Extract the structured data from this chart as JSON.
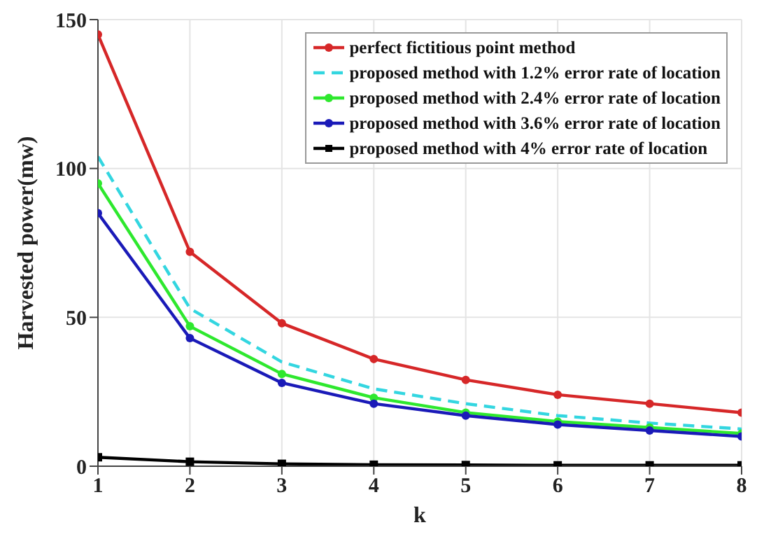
{
  "chart_data": {
    "type": "line",
    "xlabel": "k",
    "ylabel": "Harvested power(mw)",
    "x": [
      1,
      2,
      3,
      4,
      5,
      6,
      7,
      8
    ],
    "xlim": [
      1,
      8
    ],
    "xticks": [
      1,
      2,
      3,
      4,
      5,
      6,
      7,
      8
    ],
    "ylim": [
      0,
      150
    ],
    "yticks": [
      0,
      50,
      100,
      150
    ],
    "grid": true,
    "legend": "top right",
    "marker": "circle",
    "line_style": "solid",
    "series": [
      {
        "name": "perfect fictitious point method",
        "color": "#d62728",
        "values": [
          145,
          72,
          48,
          36,
          29,
          24,
          21,
          18
        ]
      },
      {
        "name": "proposed method with 1.2% error rate of location",
        "color": "#33d6e0",
        "values": [
          104,
          53,
          35,
          26,
          21,
          17,
          14.5,
          12.5
        ],
        "marker": "none",
        "line_style": "dashed"
      },
      {
        "name": "proposed method with 2.4% error rate of location",
        "color": "#2ee82e",
        "values": [
          95,
          47,
          31,
          23,
          18,
          15,
          13,
          11
        ]
      },
      {
        "name": "proposed method with 3.6% error rate of location",
        "color": "#1a1ab8",
        "values": [
          85,
          43,
          28,
          21,
          17,
          14,
          12,
          10
        ]
      },
      {
        "name": "proposed method with 4% error rate of location",
        "color": "#000000",
        "values": [
          3,
          1.5,
          0.8,
          0.5,
          0.4,
          0.3,
          0.3,
          0.3
        ],
        "marker": "square"
      }
    ]
  }
}
